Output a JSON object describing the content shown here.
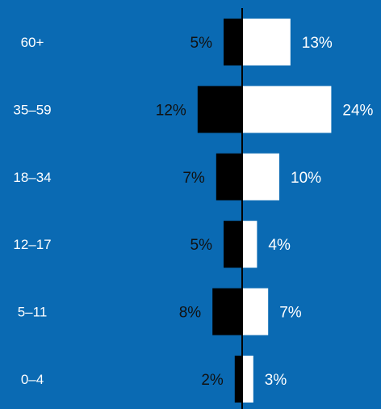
{
  "colors": {
    "background": "#0a6ab3",
    "left_bar": "#000000",
    "right_bar": "#ffffff",
    "axis": "#000000",
    "category_text": "#ffffff",
    "left_value_text": "#111111",
    "right_value_text": "#ffffff"
  },
  "chart_data": {
    "type": "bar",
    "orientation": "horizontal",
    "layout": "diverging",
    "categories": [
      "60+",
      "35–59",
      "18–34",
      "12–17",
      "5–11",
      "0–4"
    ],
    "series": [
      {
        "side": "left",
        "values": [
          5,
          12,
          7,
          5,
          8,
          2
        ],
        "labels": [
          "5%",
          "12%",
          "7%",
          "5%",
          "8%",
          "2%"
        ]
      },
      {
        "side": "right",
        "values": [
          13,
          24,
          10,
          4,
          7,
          3
        ],
        "labels": [
          "13%",
          "24%",
          "10%",
          "4%",
          "7%",
          "3%"
        ]
      }
    ],
    "unit": "%",
    "title": "",
    "xlabel": "",
    "ylabel": "",
    "legend": "none",
    "grid": false
  }
}
